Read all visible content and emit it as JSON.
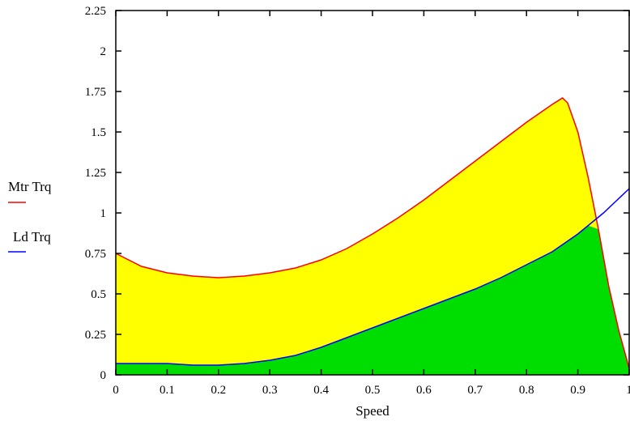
{
  "chart_data": {
    "type": "area",
    "xlabel": "Speed",
    "ylabel": "",
    "xlim": [
      0,
      1
    ],
    "ylim": [
      0,
      2.25
    ],
    "grid": false,
    "legend_position": "left",
    "x_ticks": [
      {
        "value": 0,
        "label": "0"
      },
      {
        "value": 0.1,
        "label": "0.1"
      },
      {
        "value": 0.2,
        "label": "0.2"
      },
      {
        "value": 0.3,
        "label": "0.3"
      },
      {
        "value": 0.4,
        "label": "0.4"
      },
      {
        "value": 0.5,
        "label": "0.5"
      },
      {
        "value": 0.6,
        "label": "0.6"
      },
      {
        "value": 0.7,
        "label": "0.7"
      },
      {
        "value": 0.8,
        "label": "0.8"
      },
      {
        "value": 0.9,
        "label": "0.9"
      },
      {
        "value": 1,
        "label": "1"
      }
    ],
    "y_ticks": [
      {
        "value": 0,
        "label": "0"
      },
      {
        "value": 0.25,
        "label": "0.25"
      },
      {
        "value": 0.5,
        "label": "0.5"
      },
      {
        "value": 0.75,
        "label": "0.75"
      },
      {
        "value": 1,
        "label": "1"
      },
      {
        "value": 1.25,
        "label": "1.25"
      },
      {
        "value": 1.5,
        "label": "1.5"
      },
      {
        "value": 1.75,
        "label": "1.75"
      },
      {
        "value": 2,
        "label": "2"
      },
      {
        "value": 2.25,
        "label": "2.25"
      }
    ],
    "series": [
      {
        "name": "Mtr Trq",
        "color": "#ff0000",
        "fill": "#ffff00",
        "x": [
          0,
          0.05,
          0.1,
          0.15,
          0.2,
          0.25,
          0.3,
          0.35,
          0.4,
          0.45,
          0.5,
          0.55,
          0.6,
          0.65,
          0.7,
          0.75,
          0.8,
          0.85,
          0.87,
          0.88,
          0.9,
          0.92,
          0.94,
          0.96,
          0.98,
          1.0
        ],
        "y": [
          0.75,
          0.67,
          0.63,
          0.61,
          0.6,
          0.61,
          0.63,
          0.66,
          0.71,
          0.78,
          0.87,
          0.97,
          1.08,
          1.2,
          1.32,
          1.44,
          1.56,
          1.67,
          1.71,
          1.68,
          1.5,
          1.22,
          0.9,
          0.55,
          0.27,
          0.04
        ]
      },
      {
        "name": "Ld Trq",
        "color": "#0000ff",
        "fill": "#00dd00",
        "x": [
          0,
          0.05,
          0.1,
          0.15,
          0.2,
          0.25,
          0.3,
          0.35,
          0.4,
          0.45,
          0.5,
          0.55,
          0.6,
          0.65,
          0.7,
          0.75,
          0.8,
          0.85,
          0.9,
          0.95,
          1.0
        ],
        "y": [
          0.07,
          0.07,
          0.07,
          0.06,
          0.06,
          0.07,
          0.09,
          0.12,
          0.17,
          0.23,
          0.29,
          0.35,
          0.41,
          0.47,
          0.53,
          0.6,
          0.68,
          0.76,
          0.87,
          1.0,
          1.15
        ]
      }
    ]
  }
}
